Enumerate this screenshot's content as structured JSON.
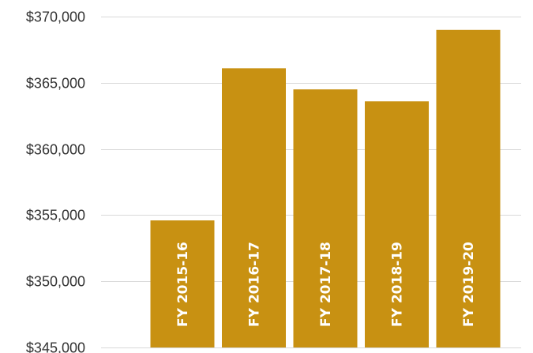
{
  "chart_data": {
    "type": "bar",
    "categories": [
      "FY 2015-16",
      "FY 2016-17",
      "FY 2017-18",
      "FY 2018-19",
      "FY 2019-20"
    ],
    "values": [
      354600,
      366100,
      364500,
      363600,
      369000
    ],
    "ylim": [
      345000,
      370000
    ],
    "yticks": [
      345000,
      350000,
      355000,
      360000,
      365000,
      370000
    ],
    "ytick_labels": [
      "$345,000",
      "$350,000",
      "$355,000",
      "$360,000",
      "$365,000",
      "$370,000"
    ],
    "grid": true,
    "bar_color": "#C89112",
    "category_labels_inside_bars": true
  }
}
